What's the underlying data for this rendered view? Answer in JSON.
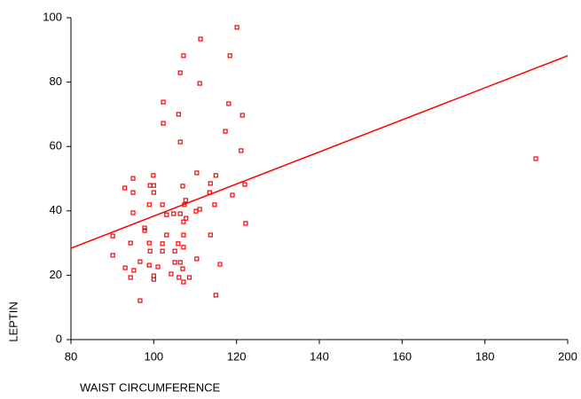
{
  "chart_data": {
    "type": "scatter",
    "x_label": "WAIST CIRCUMFERENCE",
    "y_label": "LEPTIN",
    "xlim": [
      80,
      200
    ],
    "ylim": [
      0,
      100
    ],
    "xticks": [
      80,
      100,
      120,
      140,
      160,
      180,
      200
    ],
    "yticks": [
      0,
      20,
      40,
      60,
      80,
      100
    ],
    "series": [
      {
        "type": "scatter",
        "color": "#ff0000",
        "x": [
          120.1,
          111.3,
          107.2,
          118.4,
          106.4,
          111.1,
          102.3,
          118.1,
          106.0,
          121.4,
          102.3,
          117.3,
          106.4,
          121.1,
          192.3,
          110.4,
          95.0,
          99.9,
          115.0,
          93.0,
          99.1,
          100.0,
          107.0,
          113.7,
          122.0,
          95.0,
          100.0,
          113.5,
          119.0,
          107.7,
          114.7,
          98.9,
          102.1,
          107.4,
          111.1,
          110.2,
          95.0,
          103.1,
          104.8,
          106.4,
          107.8,
          107.2,
          122.2,
          97.8,
          97.8,
          90.1,
          103.1,
          107.2,
          113.7,
          94.4,
          98.9,
          102.1,
          105.9,
          107.2,
          99.1,
          102.1,
          105.1,
          90.1,
          110.4,
          96.7,
          105.1,
          106.4,
          116.0,
          93.1,
          98.9,
          101.0,
          95.2,
          107.0,
          104.2,
          94.4,
          100.0,
          100.0,
          106.1,
          108.6,
          107.2,
          115.0,
          96.7
        ],
        "values": [
          97.0,
          93.4,
          88.2,
          88.2,
          82.9,
          79.6,
          73.8,
          73.3,
          70.0,
          69.7,
          67.2,
          64.7,
          61.4,
          58.7,
          56.2,
          51.8,
          50.1,
          51.0,
          51.0,
          47.1,
          47.9,
          47.9,
          47.7,
          48.5,
          48.2,
          45.7,
          45.7,
          45.7,
          44.9,
          43.3,
          41.9,
          41.9,
          41.9,
          41.9,
          40.5,
          39.9,
          39.4,
          38.8,
          39.1,
          39.1,
          37.7,
          36.6,
          36.1,
          34.7,
          33.9,
          32.2,
          32.5,
          32.5,
          32.5,
          30.0,
          30.0,
          29.8,
          29.8,
          28.7,
          27.5,
          27.5,
          27.5,
          26.2,
          25.1,
          24.2,
          24.0,
          24.0,
          23.4,
          22.3,
          23.1,
          22.6,
          21.5,
          22.0,
          20.4,
          19.3,
          19.8,
          18.7,
          19.3,
          19.3,
          17.9,
          13.8,
          12.1
        ]
      },
      {
        "type": "line",
        "color": "#ff0000",
        "x": [
          80,
          200
        ],
        "values": [
          28.4,
          88.2
        ]
      }
    ]
  }
}
